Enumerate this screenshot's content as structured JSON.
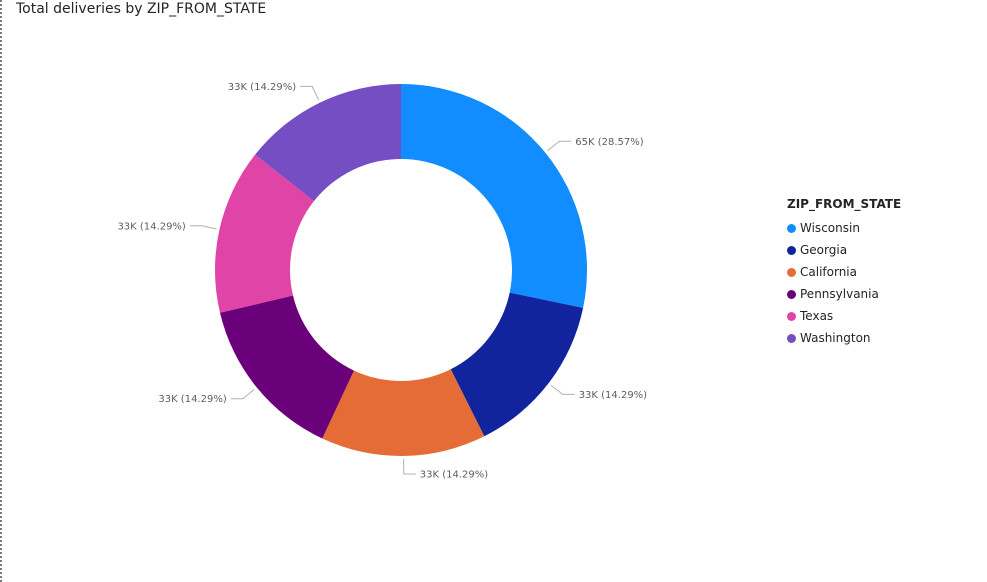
{
  "title": "Total deliveries by ZIP_FROM_STATE",
  "legend": {
    "title": "ZIP_FROM_STATE",
    "items": [
      {
        "label": "Wisconsin",
        "color": "#118DFF"
      },
      {
        "label": "Georgia",
        "color": "#12239E"
      },
      {
        "label": "California",
        "color": "#E66C37"
      },
      {
        "label": "Pennsylvania",
        "color": "#6B007B"
      },
      {
        "label": "Texas",
        "color": "#E044A7"
      },
      {
        "label": "Washington",
        "color": "#744EC2"
      }
    ]
  },
  "chart_data": {
    "type": "pie",
    "variant": "donut",
    "title": "Total deliveries by ZIP_FROM_STATE",
    "legend_title": "ZIP_FROM_STATE",
    "legend_position": "right",
    "categories": [
      "Wisconsin",
      "Georgia",
      "California",
      "Pennsylvania",
      "Texas",
      "Washington"
    ],
    "values": [
      65000,
      33000,
      33000,
      33000,
      33000,
      33000
    ],
    "percents": [
      28.57,
      14.29,
      14.29,
      14.29,
      14.29,
      14.29
    ],
    "labels": [
      "65K (28.57%)",
      "33K (14.29%)",
      "33K (14.29%)",
      "33K (14.29%)",
      "33K (14.29%)",
      "33K (14.29%)"
    ],
    "colors": [
      "#118DFF",
      "#12239E",
      "#E66C37",
      "#6B007B",
      "#E044A7",
      "#744EC2"
    ]
  }
}
